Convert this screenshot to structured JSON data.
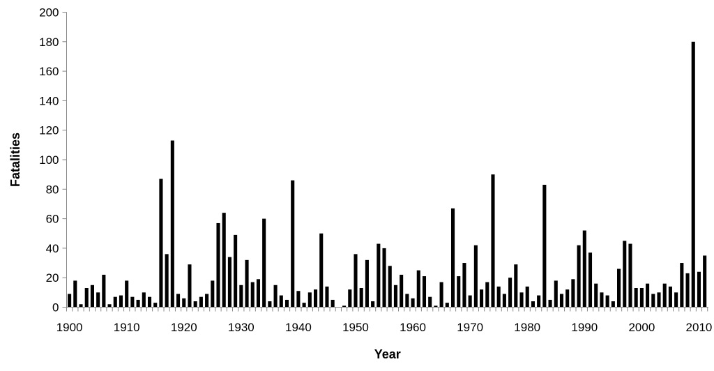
{
  "chart_data": {
    "type": "bar",
    "title": "",
    "xlabel": "Year",
    "ylabel": "Fatalities",
    "ylim": [
      0,
      200
    ],
    "y_ticks": [
      0,
      20,
      40,
      60,
      80,
      100,
      120,
      140,
      160,
      180,
      200
    ],
    "x_tick_labels": [
      "1900",
      "1910",
      "1920",
      "1930",
      "1940",
      "1950",
      "1960",
      "1970",
      "1980",
      "1990",
      "2000",
      "2010"
    ],
    "grid": false,
    "legend": "none",
    "bar_color": "#000000",
    "x": [
      1900,
      1901,
      1902,
      1903,
      1904,
      1905,
      1906,
      1907,
      1908,
      1909,
      1910,
      1911,
      1912,
      1913,
      1914,
      1915,
      1916,
      1917,
      1918,
      1919,
      1920,
      1921,
      1922,
      1923,
      1924,
      1925,
      1926,
      1927,
      1928,
      1929,
      1930,
      1931,
      1932,
      1933,
      1934,
      1935,
      1936,
      1937,
      1938,
      1939,
      1940,
      1941,
      1942,
      1943,
      1944,
      1945,
      1946,
      1947,
      1948,
      1949,
      1950,
      1951,
      1952,
      1953,
      1954,
      1955,
      1956,
      1957,
      1958,
      1959,
      1960,
      1961,
      1962,
      1963,
      1964,
      1965,
      1966,
      1967,
      1968,
      1969,
      1970,
      1971,
      1972,
      1973,
      1974,
      1975,
      1976,
      1977,
      1978,
      1979,
      1980,
      1981,
      1982,
      1983,
      1984,
      1985,
      1986,
      1987,
      1988,
      1989,
      1990,
      1991,
      1992,
      1993,
      1994,
      1995,
      1996,
      1997,
      1998,
      1999,
      2000,
      2001,
      2002,
      2003,
      2004,
      2005,
      2006,
      2007,
      2008,
      2009,
      2010,
      2011
    ],
    "values": [
      9,
      18,
      2,
      13,
      15,
      10,
      22,
      2,
      7,
      8,
      18,
      7,
      5,
      10,
      7,
      3,
      87,
      36,
      113,
      9,
      6,
      29,
      4,
      7,
      9,
      18,
      57,
      64,
      34,
      49,
      15,
      32,
      17,
      19,
      60,
      4,
      15,
      8,
      5,
      86,
      11,
      3,
      10,
      12,
      50,
      14,
      5,
      0,
      1,
      12,
      36,
      13,
      32,
      4,
      43,
      40,
      28,
      15,
      22,
      9,
      6,
      25,
      21,
      7,
      1,
      17,
      3,
      67,
      21,
      30,
      8,
      42,
      12,
      17,
      90,
      14,
      9,
      20,
      29,
      10,
      14,
      4,
      8,
      83,
      5,
      18,
      9,
      12,
      19,
      42,
      52,
      37,
      16,
      10,
      8,
      4,
      26,
      45,
      43,
      13,
      13,
      16,
      9,
      10,
      16,
      14,
      10,
      30,
      23,
      180,
      24,
      35
    ]
  }
}
